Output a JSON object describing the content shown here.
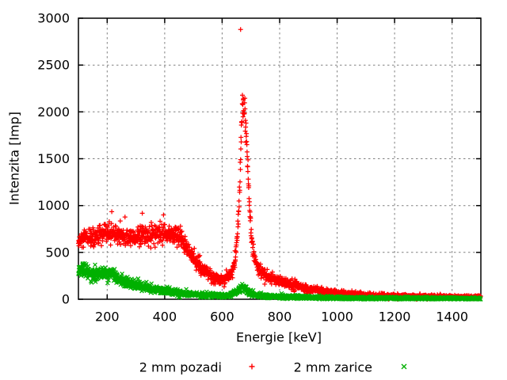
{
  "figure": {
    "background": "#ffffff",
    "border_color": "#000000",
    "grid_color": "#808080",
    "text_color": "#000000"
  },
  "chart_data": {
    "type": "scatter",
    "title": "",
    "xlabel": "Energie [keV]",
    "ylabel": "Intenzita [Imp]",
    "xlim": [
      100,
      1500
    ],
    "ylim": [
      0,
      3000
    ],
    "xticks": [
      200,
      400,
      600,
      800,
      1000,
      1200,
      1400
    ],
    "yticks": [
      0,
      500,
      1000,
      1500,
      2000,
      2500,
      3000
    ],
    "grid": true,
    "legend_position": "below-center",
    "series": [
      {
        "name": "2 mm pozadi",
        "marker": "plus",
        "color": "#ff0000",
        "step_kev": 0.7,
        "noise_k": 2.0,
        "seed": 12345,
        "envelope": [
          [
            100,
            600
          ],
          [
            115,
            635
          ],
          [
            130,
            650
          ],
          [
            145,
            655
          ],
          [
            160,
            665
          ],
          [
            175,
            675
          ],
          [
            190,
            690
          ],
          [
            205,
            700
          ],
          [
            220,
            705
          ],
          [
            235,
            695
          ],
          [
            250,
            680
          ],
          [
            265,
            665
          ],
          [
            280,
            660
          ],
          [
            295,
            665
          ],
          [
            310,
            670
          ],
          [
            325,
            672
          ],
          [
            340,
            678
          ],
          [
            355,
            685
          ],
          [
            370,
            690
          ],
          [
            385,
            695
          ],
          [
            400,
            698
          ],
          [
            415,
            700
          ],
          [
            430,
            692
          ],
          [
            445,
            672
          ],
          [
            460,
            625
          ],
          [
            475,
            560
          ],
          [
            490,
            490
          ],
          [
            505,
            425
          ],
          [
            520,
            360
          ],
          [
            535,
            310
          ],
          [
            550,
            272
          ],
          [
            565,
            240
          ],
          [
            580,
            222
          ],
          [
            595,
            214
          ],
          [
            610,
            218
          ],
          [
            620,
            232
          ],
          [
            630,
            268
          ],
          [
            638,
            330
          ],
          [
            645,
            430
          ],
          [
            651,
            580
          ],
          [
            656,
            800
          ],
          [
            660,
            1100
          ],
          [
            663,
            1400
          ],
          [
            666,
            1700
          ],
          [
            669,
            1950
          ],
          [
            672,
            2080
          ],
          [
            675,
            2100
          ],
          [
            678,
            2040
          ],
          [
            681,
            1900
          ],
          [
            684,
            1700
          ],
          [
            688,
            1440
          ],
          [
            692,
            1180
          ],
          [
            696,
            950
          ],
          [
            700,
            760
          ],
          [
            705,
            590
          ],
          [
            710,
            480
          ],
          [
            716,
            405
          ],
          [
            722,
            355
          ],
          [
            728,
            322
          ],
          [
            736,
            292
          ],
          [
            744,
            270
          ],
          [
            752,
            253
          ],
          [
            760,
            240
          ],
          [
            775,
            222
          ],
          [
            790,
            207
          ],
          [
            805,
            192
          ],
          [
            825,
            174
          ],
          [
            845,
            152
          ],
          [
            865,
            138
          ],
          [
            885,
            125
          ],
          [
            905,
            105
          ],
          [
            930,
            95
          ],
          [
            955,
            82
          ],
          [
            980,
            72
          ],
          [
            1005,
            62
          ],
          [
            1030,
            57
          ],
          [
            1055,
            52
          ],
          [
            1080,
            48
          ],
          [
            1105,
            45
          ],
          [
            1140,
            42
          ],
          [
            1170,
            39
          ],
          [
            1205,
            36
          ],
          [
            1255,
            33
          ],
          [
            1305,
            30
          ],
          [
            1355,
            27
          ],
          [
            1405,
            25
          ],
          [
            1455,
            23
          ],
          [
            1500,
            22
          ]
        ],
        "outliers": [
          [
            216,
            935
          ],
          [
            262,
            878
          ],
          [
            322,
            918
          ],
          [
            396,
            900
          ],
          [
            664,
            2880
          ]
        ]
      },
      {
        "name": "2 mm zarice",
        "marker": "cross",
        "color": "#00b000",
        "step_kev": 0.7,
        "noise_k": 2.0,
        "seed": 67890,
        "envelope": [
          [
            100,
            310
          ],
          [
            115,
            300
          ],
          [
            130,
            285
          ],
          [
            145,
            272
          ],
          [
            160,
            262
          ],
          [
            175,
            268
          ],
          [
            190,
            284
          ],
          [
            205,
            282
          ],
          [
            220,
            262
          ],
          [
            235,
            235
          ],
          [
            250,
            205
          ],
          [
            265,
            182
          ],
          [
            280,
            165
          ],
          [
            295,
            152
          ],
          [
            310,
            140
          ],
          [
            330,
            126
          ],
          [
            350,
            113
          ],
          [
            375,
            100
          ],
          [
            400,
            88
          ],
          [
            425,
            78
          ],
          [
            450,
            68
          ],
          [
            475,
            60
          ],
          [
            500,
            50
          ],
          [
            525,
            44
          ],
          [
            550,
            41
          ],
          [
            575,
            40
          ],
          [
            600,
            40
          ],
          [
            615,
            43
          ],
          [
            630,
            52
          ],
          [
            640,
            65
          ],
          [
            650,
            85
          ],
          [
            658,
            105
          ],
          [
            665,
            122
          ],
          [
            672,
            125
          ],
          [
            678,
            115
          ],
          [
            685,
            98
          ],
          [
            692,
            80
          ],
          [
            700,
            65
          ],
          [
            710,
            52
          ],
          [
            720,
            45
          ],
          [
            735,
            40
          ],
          [
            750,
            36
          ],
          [
            775,
            31
          ],
          [
            800,
            28
          ],
          [
            850,
            24
          ],
          [
            900,
            19
          ],
          [
            950,
            17
          ],
          [
            1000,
            15
          ],
          [
            1050,
            14
          ],
          [
            1100,
            13
          ],
          [
            1150,
            12
          ],
          [
            1200,
            11
          ],
          [
            1300,
            10
          ],
          [
            1400,
            9
          ],
          [
            1500,
            8
          ]
        ],
        "outliers": [
          [
            158,
            368
          ]
        ]
      }
    ]
  }
}
